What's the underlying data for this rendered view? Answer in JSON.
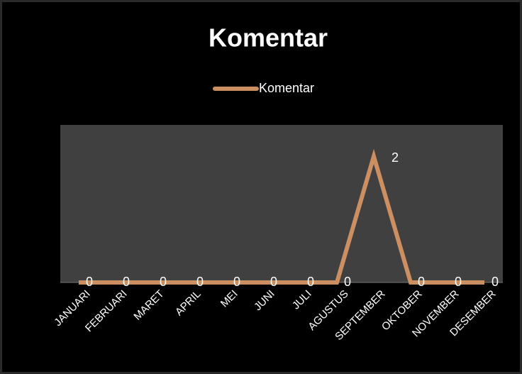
{
  "chart_data": {
    "type": "line",
    "title": "Komentar",
    "categories": [
      "JANUARI",
      "FEBRUARI",
      "MARET",
      "APRIL",
      "MEI",
      "JUNI",
      "JULI",
      "AGUSTUS",
      "SEPTEMBER",
      "OKTOBER",
      "NOVEMBER",
      "DESEMBER"
    ],
    "series": [
      {
        "name": "Komentar",
        "color": "#cc8f62",
        "values": [
          0,
          0,
          0,
          0,
          0,
          0,
          0,
          0,
          2,
          0,
          0,
          0
        ]
      }
    ],
    "ylim": [
      0,
      2.5
    ],
    "legend": "top"
  }
}
